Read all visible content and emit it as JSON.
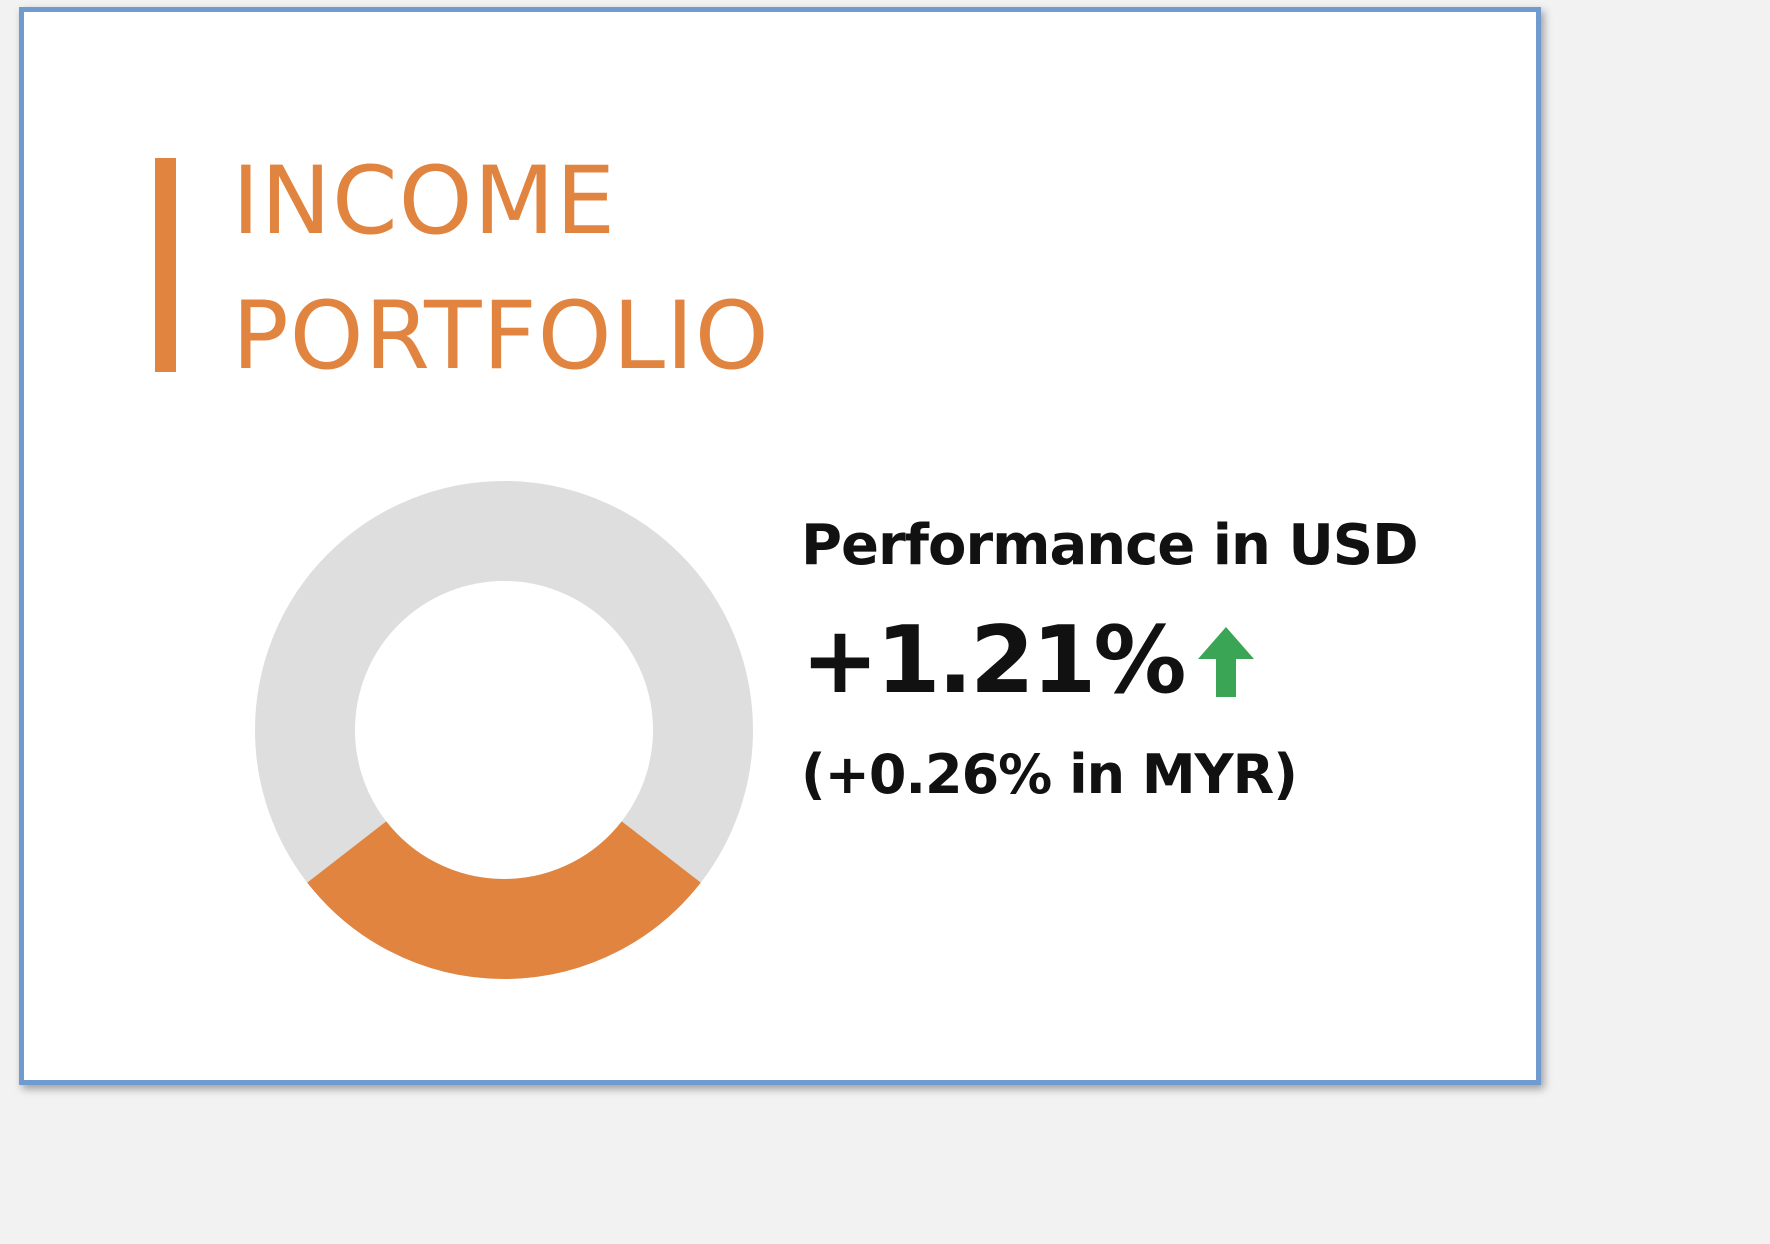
{
  "title": {
    "line1": "INCOME",
    "line2": "PORTFOLIO"
  },
  "performance": {
    "label": "Performance in USD",
    "value": "+1.21%",
    "secondary": "(+0.26% in MYR)",
    "trend_icon": "up-arrow-icon"
  },
  "donut": {
    "highlight_fraction": 0.29
  },
  "colors": {
    "accent": "#e0843f",
    "track": "#dedede",
    "text": "#111111",
    "positive": "#3aa655",
    "frame": "#6f9bd1"
  }
}
